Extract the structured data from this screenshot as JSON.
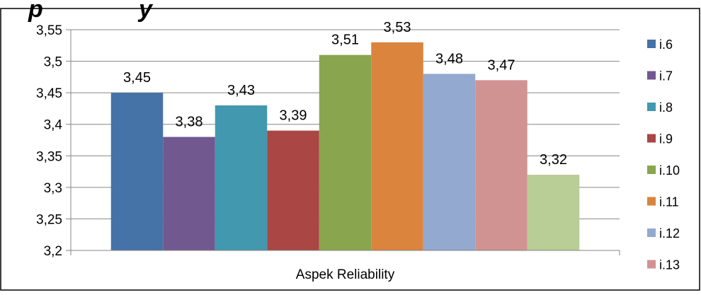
{
  "chart_data": {
    "type": "bar",
    "categories": [
      "Aspek Reliability"
    ],
    "series": [
      {
        "name": "i.6",
        "values": [
          3.45
        ],
        "color": "#4572A7"
      },
      {
        "name": "i.7",
        "values": [
          3.38
        ],
        "color": "#71588F"
      },
      {
        "name": "i.8",
        "values": [
          3.43
        ],
        "color": "#4198AF"
      },
      {
        "name": "i.9",
        "values": [
          3.39
        ],
        "color": "#AA4643"
      },
      {
        "name": "i.10",
        "values": [
          3.51
        ],
        "color": "#89A54E"
      },
      {
        "name": "i.11",
        "values": [
          3.53
        ],
        "color": "#DB843D"
      },
      {
        "name": "i.12",
        "values": [
          3.48
        ],
        "color": "#93A9CF"
      },
      {
        "name": "i.13",
        "values": [
          3.47
        ],
        "color": "#D19392"
      },
      {
        "name": "",
        "values": [
          3.32
        ],
        "color": "#B9CD96"
      }
    ],
    "data_labels": [
      "3,45",
      "3,38",
      "3,43",
      "3,39",
      "3,51",
      "3,53",
      "3,48",
      "3,47",
      "3,32"
    ],
    "y_ticks": [
      {
        "value": 3.2,
        "label": "3,2"
      },
      {
        "value": 3.25,
        "label": "3,25"
      },
      {
        "value": 3.3,
        "label": "3,3"
      },
      {
        "value": 3.35,
        "label": "3,35"
      },
      {
        "value": 3.4,
        "label": "3,4"
      },
      {
        "value": 3.45,
        "label": "3,45"
      },
      {
        "value": 3.5,
        "label": "3,5"
      },
      {
        "value": 3.55,
        "label": "3,55"
      }
    ],
    "ylim": [
      3.2,
      3.55
    ],
    "grid": true,
    "legend_position": "right",
    "xlabel": "",
    "ylabel": ""
  }
}
